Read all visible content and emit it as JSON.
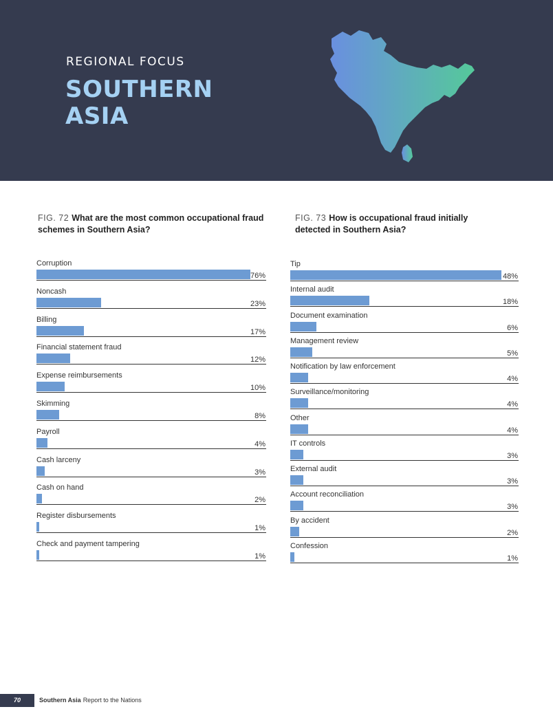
{
  "header": {
    "kicker": "REGIONAL FOCUS",
    "title_line1": "SOUTHERN",
    "title_line2": "ASIA",
    "background_color": "#353b4f",
    "title_color": "#a5d1f3",
    "map_gradient": [
      "#6a8fe0",
      "#55c99a"
    ]
  },
  "fig72": {
    "number": "FIG. 72",
    "question": "What are the most common occupational fraud schemes in Southern Asia?"
  },
  "fig73": {
    "number": "FIG. 73",
    "question": "How is occupational fraud initially detected in Southern Asia?"
  },
  "chart_data": [
    {
      "type": "bar",
      "orientation": "horizontal",
      "title": "What are the most common occupational fraud schemes in Southern Asia?",
      "bar_color": "#6d9bd3",
      "categories": [
        "Corruption",
        "Noncash",
        "Billing",
        "Financial statement fraud",
        "Expense reimbursements",
        "Skimming",
        "Payroll",
        "Cash larceny",
        "Cash on hand",
        "Register disbursements",
        "Check and payment tampering"
      ],
      "values": [
        76,
        23,
        17,
        12,
        10,
        8,
        4,
        3,
        2,
        1,
        1
      ],
      "value_labels": [
        "76%",
        "23%",
        "17%",
        "12%",
        "10%",
        "8%",
        "4%",
        "3%",
        "2%",
        "1%",
        "1%"
      ],
      "xlim": [
        0,
        80
      ]
    },
    {
      "type": "bar",
      "orientation": "horizontal",
      "title": "How is occupational fraud initially detected in Southern Asia?",
      "bar_color": "#6d9bd3",
      "categories": [
        "Tip",
        "Internal audit",
        "Document examination",
        "Management review",
        "Notification by law enforcement",
        "Surveillance/monitoring",
        "Other",
        "IT controls",
        "External audit",
        "Account reconciliation",
        "By accident",
        "Confession"
      ],
      "values": [
        48,
        18,
        6,
        5,
        4,
        4,
        4,
        3,
        3,
        3,
        2,
        1
      ],
      "value_labels": [
        "48%",
        "18%",
        "6%",
        "5%",
        "4%",
        "4%",
        "4%",
        "3%",
        "3%",
        "3%",
        "2%",
        "1%"
      ],
      "xlim": [
        0,
        50
      ]
    }
  ],
  "footer": {
    "page_number": "70",
    "section": "Southern Asia",
    "publication": "Report to the Nations"
  }
}
